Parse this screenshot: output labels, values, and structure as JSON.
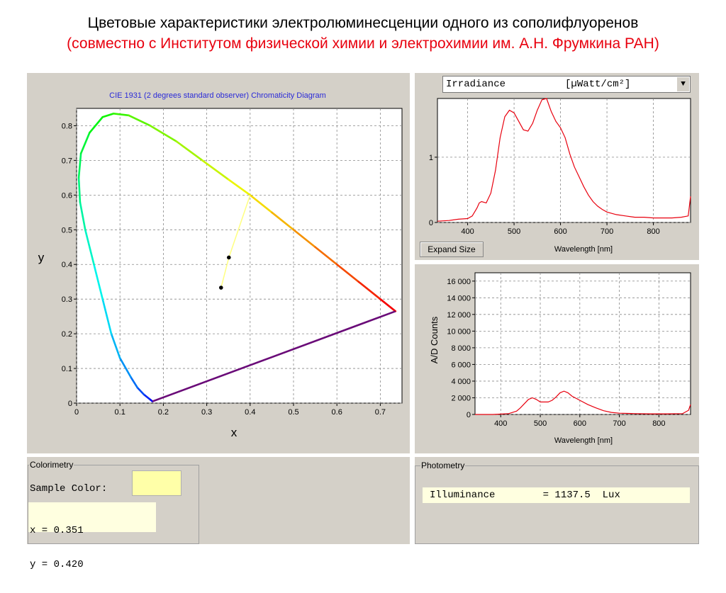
{
  "slide": {
    "title_line1": "Цветовые характеристики электролюминесценции одного из сополифлуоренов",
    "title_line2": "(совместно с Институтом физической химии и электрохимии им. А.Н. Фрумкина РАН)"
  },
  "colors": {
    "panel": "#d4d0c8",
    "curve": "#e8000e",
    "sample": "#ffffa8",
    "line_of_purples": "#6a0b78",
    "link_line": "#ffff80"
  },
  "cie": {
    "title": "CIE 1931 (2 degrees standard observer) Chromaticity Diagram",
    "xlabel": "x",
    "ylabel": "y"
  },
  "spectrum": {
    "dropdown": "Irradiance          [µWatt/cm²]",
    "xlabel": "Wavelength [nm]",
    "expand_label": "Expand Size"
  },
  "counts": {
    "xlabel": "Wavelength [nm]",
    "ylabel": "A/D Counts"
  },
  "colorimetry": {
    "legend": "Colorimetry",
    "sample_label": "Sample Color:",
    "x_line": "x = 0.351",
    "y_line": "y = 0.420"
  },
  "photometry": {
    "legend": "Photometry",
    "row": "Illuminance        = 1137.5  Lux"
  },
  "chart_data": [
    {
      "type": "scatter",
      "title": "CIE 1931 (2 degrees standard observer) Chromaticity Diagram",
      "xlabel": "x",
      "ylabel": "y",
      "xlim": [
        0,
        0.75
      ],
      "ylim": [
        0,
        0.85
      ],
      "xticks": [
        0,
        0.1,
        0.2,
        0.3,
        0.4,
        0.5,
        0.6,
        0.7
      ],
      "yticks": [
        0,
        0.1,
        0.2,
        0.3,
        0.4,
        0.5,
        0.6,
        0.7,
        0.8
      ],
      "grid": true,
      "series": [
        {
          "points": [
            [
              0.351,
              0.42
            ],
            [
              0.333,
              0.333
            ]
          ]
        }
      ],
      "locus": [
        [
          0.175,
          0.005
        ],
        [
          0.168,
          0.012
        ],
        [
          0.155,
          0.025
        ],
        [
          0.14,
          0.045
        ],
        [
          0.125,
          0.075
        ],
        [
          0.1,
          0.13
        ],
        [
          0.08,
          0.2
        ],
        [
          0.06,
          0.3
        ],
        [
          0.04,
          0.4
        ],
        [
          0.02,
          0.5
        ],
        [
          0.008,
          0.58
        ],
        [
          0.005,
          0.65
        ],
        [
          0.01,
          0.72
        ],
        [
          0.03,
          0.78
        ],
        [
          0.06,
          0.825
        ],
        [
          0.085,
          0.835
        ],
        [
          0.12,
          0.83
        ],
        [
          0.17,
          0.8
        ],
        [
          0.23,
          0.755
        ],
        [
          0.29,
          0.7
        ],
        [
          0.35,
          0.645
        ],
        [
          0.4,
          0.6
        ],
        [
          0.45,
          0.55
        ],
        [
          0.5,
          0.5
        ],
        [
          0.55,
          0.45
        ],
        [
          0.6,
          0.4
        ],
        [
          0.65,
          0.35
        ],
        [
          0.7,
          0.3
        ],
        [
          0.735,
          0.265
        ]
      ],
      "dominant_line": [
        [
          0.351,
          0.42
        ],
        [
          0.4,
          0.6
        ]
      ]
    },
    {
      "type": "line",
      "xlabel": "Wavelength [nm]",
      "dropdown": "Irradiance [µWatt/cm²]",
      "xlim": [
        335,
        880
      ],
      "ylim": [
        0,
        1.9
      ],
      "xticks": [
        400,
        500,
        600,
        700,
        800
      ],
      "yticks": [
        0,
        1
      ],
      "grid": true,
      "x": [
        335,
        360,
        380,
        400,
        410,
        420,
        425,
        430,
        440,
        450,
        460,
        470,
        480,
        490,
        500,
        510,
        520,
        530,
        540,
        550,
        560,
        570,
        580,
        590,
        600,
        610,
        620,
        630,
        640,
        650,
        660,
        670,
        680,
        690,
        700,
        720,
        740,
        760,
        780,
        800,
        820,
        840,
        860,
        875,
        880
      ],
      "y": [
        0.02,
        0.03,
        0.05,
        0.06,
        0.1,
        0.22,
        0.3,
        0.32,
        0.3,
        0.45,
        0.8,
        1.3,
        1.62,
        1.72,
        1.68,
        1.55,
        1.42,
        1.4,
        1.52,
        1.72,
        1.88,
        1.9,
        1.7,
        1.55,
        1.45,
        1.3,
        1.05,
        0.85,
        0.7,
        0.55,
        0.42,
        0.32,
        0.25,
        0.2,
        0.16,
        0.12,
        0.1,
        0.08,
        0.08,
        0.07,
        0.07,
        0.07,
        0.08,
        0.1,
        0.4
      ]
    },
    {
      "type": "line",
      "xlabel": "Wavelength [nm]",
      "ylabel": "A/D Counts",
      "xlim": [
        335,
        880
      ],
      "ylim": [
        0,
        17000
      ],
      "xticks": [
        400,
        500,
        600,
        700,
        800
      ],
      "yticks": [
        0,
        2000,
        4000,
        6000,
        8000,
        10000,
        12000,
        14000,
        16000
      ],
      "ytick_labels": [
        "0",
        "2 000",
        "4 000",
        "6 000",
        "8 000",
        "10 000",
        "12 000",
        "14 000",
        "16 000"
      ],
      "grid": true,
      "x": [
        335,
        380,
        420,
        440,
        450,
        460,
        470,
        480,
        490,
        500,
        520,
        530,
        540,
        550,
        560,
        570,
        580,
        600,
        620,
        640,
        660,
        680,
        700,
        740,
        780,
        820,
        860,
        875,
        880
      ],
      "y": [
        0,
        0,
        100,
        400,
        800,
        1300,
        1800,
        2000,
        1800,
        1500,
        1500,
        1700,
        2100,
        2600,
        2800,
        2600,
        2200,
        1700,
        1200,
        800,
        450,
        250,
        150,
        100,
        80,
        80,
        100,
        500,
        1200
      ]
    }
  ]
}
